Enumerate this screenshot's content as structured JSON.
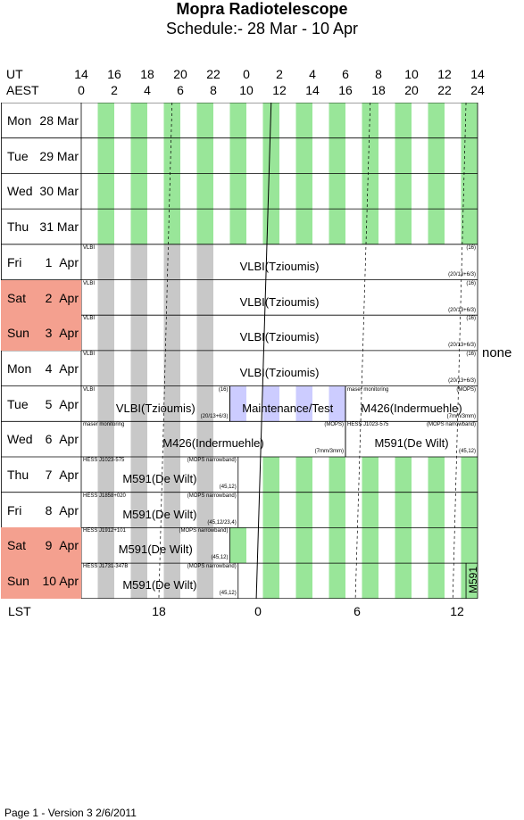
{
  "header": {
    "title": "Mopra Radiotelescope",
    "subtitle": "Schedule:- 28 Mar - 10 Apr"
  },
  "axes": {
    "ut_label": "UT",
    "aest_label": "AEST",
    "lst_label": "LST",
    "ut_ticks": [
      "14",
      "16",
      "18",
      "20",
      "22",
      "0",
      "2",
      "4",
      "6",
      "8",
      "10",
      "12",
      "14"
    ],
    "aest_ticks": [
      "0",
      "2",
      "4",
      "6",
      "8",
      "10",
      "12",
      "14",
      "16",
      "18",
      "20",
      "22",
      "24"
    ],
    "lst_ticks": [
      "18",
      "0",
      "6",
      "12"
    ]
  },
  "colors": {
    "green": "#99e699",
    "grey": "#c8c8c8",
    "maintenance": "#ccccff",
    "weekend": "#f4a08f"
  },
  "days": [
    {
      "dow": "Mon",
      "date": "28 Mar",
      "weekend": false
    },
    {
      "dow": "Tue",
      "date": "29 Mar",
      "weekend": false
    },
    {
      "dow": "Wed",
      "date": "30 Mar",
      "weekend": false
    },
    {
      "dow": "Thu",
      "date": "31 Mar",
      "weekend": false
    },
    {
      "dow": "Fri",
      "date": "1  Apr",
      "weekend": false
    },
    {
      "dow": "Sat",
      "date": "2  Apr",
      "weekend": true
    },
    {
      "dow": "Sun",
      "date": "3  Apr",
      "weekend": true
    },
    {
      "dow": "Mon",
      "date": "4  Apr",
      "weekend": false
    },
    {
      "dow": "Tue",
      "date": "5  Apr",
      "weekend": false
    },
    {
      "dow": "Wed",
      "date": "6  Apr",
      "weekend": false
    },
    {
      "dow": "Thu",
      "date": "7  Apr",
      "weekend": false
    },
    {
      "dow": "Fri",
      "date": "8  Apr",
      "weekend": false
    },
    {
      "dow": "Sat",
      "date": "9  Apr",
      "weekend": true
    },
    {
      "dow": "Sun",
      "date": "10 Apr",
      "weekend": true
    }
  ],
  "blocks": [
    {
      "row": 4,
      "start": 0,
      "end": 24,
      "label": "VLBI(Tzioumis)",
      "tl": "VLBI",
      "tr": "(16)",
      "br": "(20/13+6/3)"
    },
    {
      "row": 5,
      "start": 0,
      "end": 24,
      "label": "VLBI(Tzioumis)",
      "tl": "VLBI",
      "tr": "(16)",
      "br": "(20/13+6/3)"
    },
    {
      "row": 6,
      "start": 0,
      "end": 24,
      "label": "VLBI(Tzioumis)",
      "tl": "VLBI",
      "tr": "(16)",
      "br": "(20/13+6/3)"
    },
    {
      "row": 7,
      "start": 0,
      "end": 24,
      "label": "VLBI(Tzioumis)",
      "tl": "VLBI",
      "tr": "(16)",
      "br": "(20/13+6/3)"
    },
    {
      "row": 8,
      "start": 0,
      "end": 9,
      "label": "VLBI(Tzioumis)",
      "tl": "VLBI",
      "tr": "(16)",
      "br": "(20/13+6/3)"
    },
    {
      "row": 8,
      "start": 9,
      "end": 16,
      "label": "Maintenance/Test",
      "tl": "",
      "tr": "",
      "br": "",
      "type": "maint"
    },
    {
      "row": 8,
      "start": 16,
      "end": 24,
      "label": "M426(Indermuehle)",
      "tl": "maser monitoring",
      "tr": "(MOPS)",
      "br": "(7mm/3mm)"
    },
    {
      "row": 9,
      "start": 0,
      "end": 16,
      "label": "M426(Indermuehle)",
      "tl": "maser monitoring",
      "tr": "(MOPS)",
      "br": "(7mm/3mm)"
    },
    {
      "row": 9,
      "start": 16,
      "end": 24,
      "label": "M591(De Wilt)",
      "tl": "HESS J1023-575",
      "tr": "(MOPS narrowband)",
      "br": "(45,12)"
    },
    {
      "row": 10,
      "start": 0,
      "end": 9.5,
      "label": "M591(De Wilt)",
      "tl": "HESS J1023-575",
      "tr": "(MOPS narrowband)",
      "br": "(45,12)"
    },
    {
      "row": 11,
      "start": 0,
      "end": 9.5,
      "label": "M591(De Wilt)",
      "tl": "HESS J1858+020",
      "tr": "(MOPS narrowband)",
      "br": "(45,12/23,4)"
    },
    {
      "row": 12,
      "start": 0,
      "end": 9,
      "label": "M591(De Wilt)",
      "tl": "HESS J1912+101",
      "tr": "(MOPS narrowband)",
      "br": "(45,12)"
    },
    {
      "row": 13,
      "start": 0,
      "end": 9.5,
      "label": "M591(De Wilt)",
      "tl": "HESS J1731-347B",
      "tr": "(MOPS narrowband)",
      "br": "(45,12)"
    },
    {
      "row": 13,
      "start": 23.3,
      "end": 24,
      "label": "M591",
      "tl": "",
      "tr": "",
      "br": "",
      "type": "vertical"
    }
  ],
  "side_note": "none",
  "footer": "Page 1 - Version 3  2/6/2011"
}
